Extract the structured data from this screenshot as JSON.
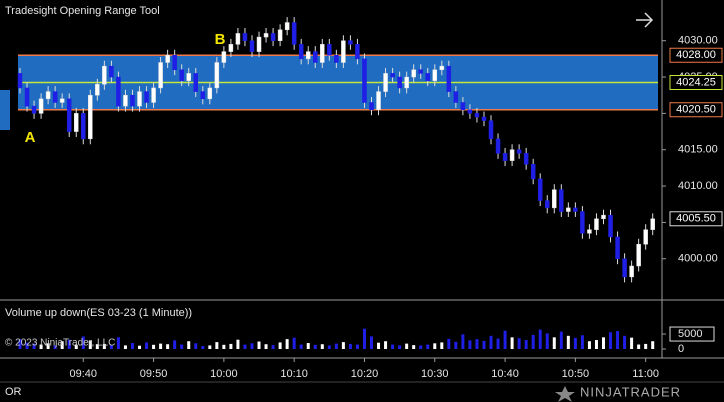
{
  "chart_data": {
    "type": "candlestick",
    "title": "Tradesight Opening Range Tool",
    "categories": [
      null,
      null,
      null,
      null,
      null,
      null,
      null,
      null,
      null,
      "09:40",
      null,
      null,
      null,
      null,
      null,
      null,
      null,
      null,
      null,
      "09:50",
      null,
      null,
      null,
      null,
      null,
      null,
      null,
      null,
      null,
      "10:00",
      null,
      null,
      null,
      null,
      null,
      null,
      null,
      null,
      null,
      "10:10",
      null,
      null,
      null,
      null,
      null,
      null,
      null,
      null,
      null,
      "10:20",
      null,
      null,
      null,
      null,
      null,
      null,
      null,
      null,
      null,
      "10:30",
      null,
      null,
      null,
      null,
      null,
      null,
      null,
      null,
      null,
      "10:40",
      null,
      null,
      null,
      null,
      null,
      null,
      null,
      null,
      null,
      "10:50",
      null,
      null,
      null,
      null,
      null,
      null,
      null,
      null,
      null,
      "11:00",
      null
    ],
    "open": [
      4025.5,
      4023.5,
      4021,
      4020,
      4022,
      4023,
      4021.5,
      4022,
      4017.5,
      4020,
      4016.5,
      4022.5,
      4024,
      4026.5,
      4025,
      4021,
      4022.5,
      4021,
      4023,
      4021.5,
      4023.5,
      4027,
      4028,
      4026,
      4024.5,
      4025.5,
      4023,
      4022,
      4023.5,
      4027,
      4028.5,
      4029.5,
      4031,
      4030,
      4028.5,
      4030.5,
      4031,
      4030,
      4031.5,
      4032.5,
      4029.5,
      4027.5,
      4028.5,
      4027,
      4029.5,
      4028,
      4027,
      4030,
      4029.5,
      4027.5,
      4021.5,
      4020.5,
      4023,
      4025.5,
      4025,
      4023.5,
      4025,
      4026,
      4025.5,
      4024.5,
      4026,
      4026.5,
      4023,
      4021.5,
      4020.5,
      4020,
      4019.5,
      4019,
      4016.5,
      4014.5,
      4013.5,
      4015,
      4014.5,
      4013,
      4011,
      4008,
      4007,
      4009.5,
      4006.5,
      4007,
      4006.5,
      4003.5,
      4004,
      4005.5,
      4006,
      4003,
      4000,
      3997.5,
      3999,
      4002,
      4004
    ],
    "high": [
      4026.25,
      4024.25,
      4021.75,
      4022.75,
      4023.75,
      4023.75,
      4022.75,
      4022.75,
      4020.75,
      4020.75,
      4023.25,
      4024.75,
      4027.25,
      4027.25,
      4025.75,
      4023.25,
      4023.25,
      4023.75,
      4023.75,
      4024.25,
      4027.75,
      4028.75,
      4028.75,
      4026.75,
      4026.25,
      4026.25,
      4023.75,
      4024.25,
      4027.75,
      4029.25,
      4030.25,
      4031.75,
      4031.75,
      4030.75,
      4031.25,
      4031.75,
      4031.75,
      4032.25,
      4033.25,
      4033.25,
      4030.25,
      4029.25,
      4029.25,
      4030.25,
      4030.25,
      4028.75,
      4030.75,
      4030.75,
      4030.25,
      4028.25,
      4022.25,
      4023.75,
      4026.25,
      4026.25,
      4025.75,
      4025.75,
      4026.75,
      4026.75,
      4026.25,
      4026.75,
      4027.25,
      4027.25,
      4023.75,
      4022.25,
      4021.25,
      4020.75,
      4020.25,
      4019.75,
      4017.25,
      4015.25,
      4015.75,
      4015.75,
      4015.25,
      4013.75,
      4011.75,
      4008.75,
      4010.25,
      4010.25,
      4007.75,
      4007.75,
      4007.25,
      4004.75,
      4006.25,
      4006.75,
      4006.75,
      4003.75,
      4000.75,
      3999.75,
      4002.75,
      4004.75,
      4006.25
    ],
    "low": [
      4022.75,
      4020.25,
      4019.25,
      4019.25,
      4021.25,
      4020.75,
      4020.75,
      4016.75,
      4016.75,
      4015.75,
      4015.75,
      4021.75,
      4023.25,
      4024.25,
      4020.25,
      4020.25,
      4020.25,
      4020.25,
      4020.75,
      4020.75,
      4022.75,
      4026.25,
      4025.25,
      4023.75,
      4023.75,
      4022.25,
      4021.25,
      4021.25,
      4022.75,
      4026.25,
      4027.75,
      4028.75,
      4029.25,
      4027.75,
      4027.75,
      4029.75,
      4029.25,
      4029.25,
      4030.75,
      4028.75,
      4026.75,
      4026.75,
      4026.25,
      4026.25,
      4027.25,
      4026.25,
      4026.25,
      4028.75,
      4026.75,
      4020.75,
      4019.75,
      4019.75,
      4022.25,
      4024.25,
      4022.75,
      4022.75,
      4024.25,
      4024.75,
      4023.75,
      4023.75,
      4025.25,
      4022.25,
      4020.75,
      4019.75,
      4019.25,
      4018.75,
      4018.25,
      4015.75,
      4013.75,
      4012.75,
      4012.75,
      4013.75,
      4012.25,
      4010.25,
      4007.25,
      4006.25,
      4006.25,
      4005.75,
      4005.75,
      4005.75,
      4002.75,
      4002.75,
      4003.25,
      4004.75,
      4002.25,
      3999.25,
      3996.75,
      3996.75,
      3998.25,
      4001.25,
      4003.25
    ],
    "close": [
      4023.5,
      4021,
      4020,
      4022,
      4023,
      4021.5,
      4022,
      4017.5,
      4020,
      4016.5,
      4022.5,
      4024,
      4026.5,
      4025,
      4021,
      4022.5,
      4021,
      4023,
      4021.5,
      4023.5,
      4027,
      4028,
      4026,
      4024.5,
      4025.5,
      4023,
      4022,
      4023.5,
      4027,
      4028.5,
      4029.5,
      4031,
      4030,
      4028.5,
      4030.5,
      4031,
      4030,
      4031.5,
      4032.5,
      4029.5,
      4027.5,
      4028.5,
      4027,
      4029.5,
      4028,
      4027,
      4030,
      4029.5,
      4027.5,
      4021.5,
      4020.5,
      4023,
      4025.5,
      4025,
      4023.5,
      4025,
      4026,
      4025.5,
      4024.5,
      4026,
      4026.5,
      4023,
      4021.5,
      4020.5,
      4020,
      4019.5,
      4019,
      4016.5,
      4014.5,
      4013.5,
      4015,
      4014.5,
      4013,
      4011,
      4008,
      4007,
      4009.5,
      4006.5,
      4007,
      4006.5,
      4003.5,
      4004,
      4005.5,
      4006,
      4003,
      4000,
      3997.5,
      3999,
      4002,
      4004,
      4005.5
    ],
    "up_color": "#ffffff",
    "down_color": "#1f1fe6",
    "ylim": [
      3994.6,
      4035.6
    ],
    "yticks": [
      {
        "value": 4000,
        "label": "4000.00"
      },
      {
        "value": 4005,
        "label": "4005.00"
      },
      {
        "value": 4010,
        "label": "4010.00"
      },
      {
        "value": 4015,
        "label": "4015.00"
      },
      {
        "value": 4020,
        "label": "4020.00"
      },
      {
        "value": 4025,
        "label": "4025.00"
      },
      {
        "value": 4030,
        "label": "4030.00"
      }
    ],
    "opening_range": {
      "high": {
        "value": 4028,
        "label": "4028.00"
      },
      "mid": {
        "value": 4024.25,
        "label": "4024.25"
      },
      "low": {
        "value": 4020.5,
        "label": "4020.50"
      },
      "fill_color": "#1f6cc0",
      "border_color": "#f07a4a",
      "mid_color": "#c6e83a"
    },
    "last_price": {
      "value": 4005.5,
      "label": "4005.50"
    },
    "annotations": [
      "A",
      "B"
    ],
    "volume": {
      "title": "Volume up down(ES 03-23 (1 Minute))",
      "values": [
        3200,
        2100,
        1800,
        1500,
        1900,
        1200,
        2600,
        3100,
        1400,
        4200,
        2800,
        1600,
        1700,
        1300,
        3900,
        1200,
        2000,
        1100,
        2200,
        1400,
        1800,
        1600,
        2900,
        1500,
        2600,
        1900,
        1000,
        1200,
        2300,
        1400,
        1700,
        3100,
        1500,
        1900,
        2500,
        1600,
        1300,
        2200,
        3300,
        3800,
        1500,
        2000,
        1400,
        1600,
        1200,
        1800,
        2300,
        1700,
        1500,
        6800,
        4200,
        2100,
        2600,
        1500,
        1200,
        1800,
        1300,
        1200,
        1500,
        1900,
        2200,
        3400,
        2400,
        4900,
        2900,
        3300,
        2700,
        4400,
        3500,
        6100,
        3900,
        3600,
        3000,
        4700,
        6500,
        5200,
        3900,
        5800,
        4400,
        3700,
        4600,
        2600,
        3000,
        3900,
        5600,
        6000,
        4400,
        3800,
        1500,
        1700,
        2600
      ],
      "ylim": [
        -2000,
        15700
      ],
      "yticks": [
        0,
        5000
      ]
    }
  },
  "footer": {
    "copyright": "© 2023 NinjaTrader, LLC",
    "tab": "OR",
    "logo": "NINJATRADER"
  }
}
